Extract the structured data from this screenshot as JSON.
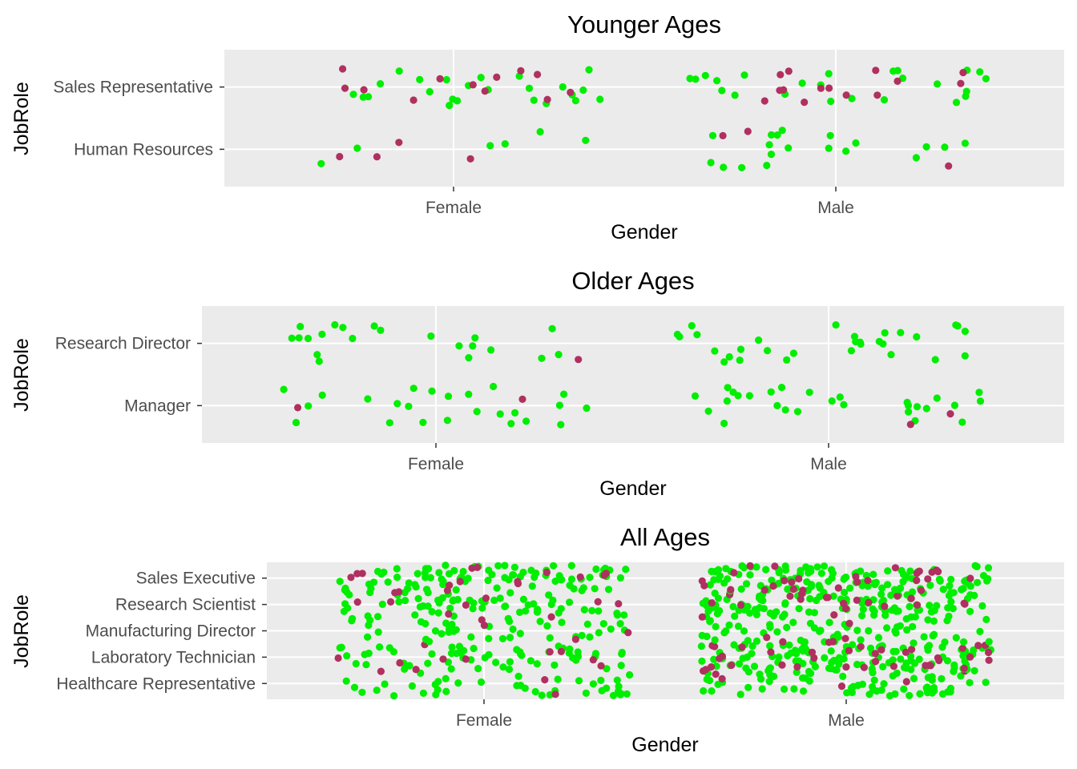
{
  "chart_data": [
    {
      "type": "scatter",
      "jitter": true,
      "title": "Younger Ages",
      "xlabel": "Gender",
      "ylabel": "JobRole",
      "x_categories": [
        "Female",
        "Male"
      ],
      "y_categories": [
        "Human Resources",
        "Sales Representative"
      ],
      "grid": true,
      "legend": "none",
      "colors": {
        "primary": "#00ee00",
        "secondary": "#b03060"
      },
      "points": {
        "Female": {
          "Sales Representative": {
            "primary": 24,
            "secondary": 12
          },
          "Human Resources": {
            "primary": 6,
            "secondary": 4
          }
        },
        "Male": {
          "Sales Representative": {
            "primary": 24,
            "secondary": 14
          },
          "Human Resources": {
            "primary": 19,
            "secondary": 3
          }
        }
      }
    },
    {
      "type": "scatter",
      "jitter": true,
      "title": "Older Ages",
      "xlabel": "Gender",
      "ylabel": "JobRole",
      "x_categories": [
        "Female",
        "Male"
      ],
      "y_categories": [
        "Manager",
        "Research Director"
      ],
      "grid": true,
      "legend": "none",
      "colors": {
        "primary": "#00ee00",
        "secondary": "#b03060"
      },
      "points": {
        "Female": {
          "Research Director": {
            "primary": 21,
            "secondary": 1
          },
          "Manager": {
            "primary": 24,
            "secondary": 2
          }
        },
        "Male": {
          "Research Director": {
            "primary": 30,
            "secondary": 0
          },
          "Manager": {
            "primary": 28,
            "secondary": 2
          }
        }
      }
    },
    {
      "type": "scatter",
      "jitter": true,
      "title": "All Ages",
      "xlabel": "Gender",
      "ylabel": "JobRole",
      "x_categories": [
        "Female",
        "Male"
      ],
      "y_categories": [
        "Healthcare Representative",
        "Laboratory Technician",
        "Manufacturing Director",
        "Research Scientist",
        "Sales Executive"
      ],
      "grid": true,
      "legend": "none",
      "colors": {
        "primary": "#00ee00",
        "secondary": "#b03060"
      },
      "points": {
        "Female": {
          "Sales Executive": {
            "primary": 80,
            "secondary": 14
          },
          "Research Scientist": {
            "primary": 60,
            "secondary": 10
          },
          "Manufacturing Director": {
            "primary": 40,
            "secondary": 4
          },
          "Laboratory Technician": {
            "primary": 55,
            "secondary": 10
          },
          "Healthcare Representative": {
            "primary": 40,
            "secondary": 3
          }
        },
        "Male": {
          "Sales Executive": {
            "primary": 110,
            "secondary": 27
          },
          "Research Scientist": {
            "primary": 110,
            "secondary": 20
          },
          "Manufacturing Director": {
            "primary": 60,
            "secondary": 6
          },
          "Laboratory Technician": {
            "primary": 110,
            "secondary": 35
          },
          "Healthcare Representative": {
            "primary": 70,
            "secondary": 6
          }
        }
      }
    }
  ]
}
